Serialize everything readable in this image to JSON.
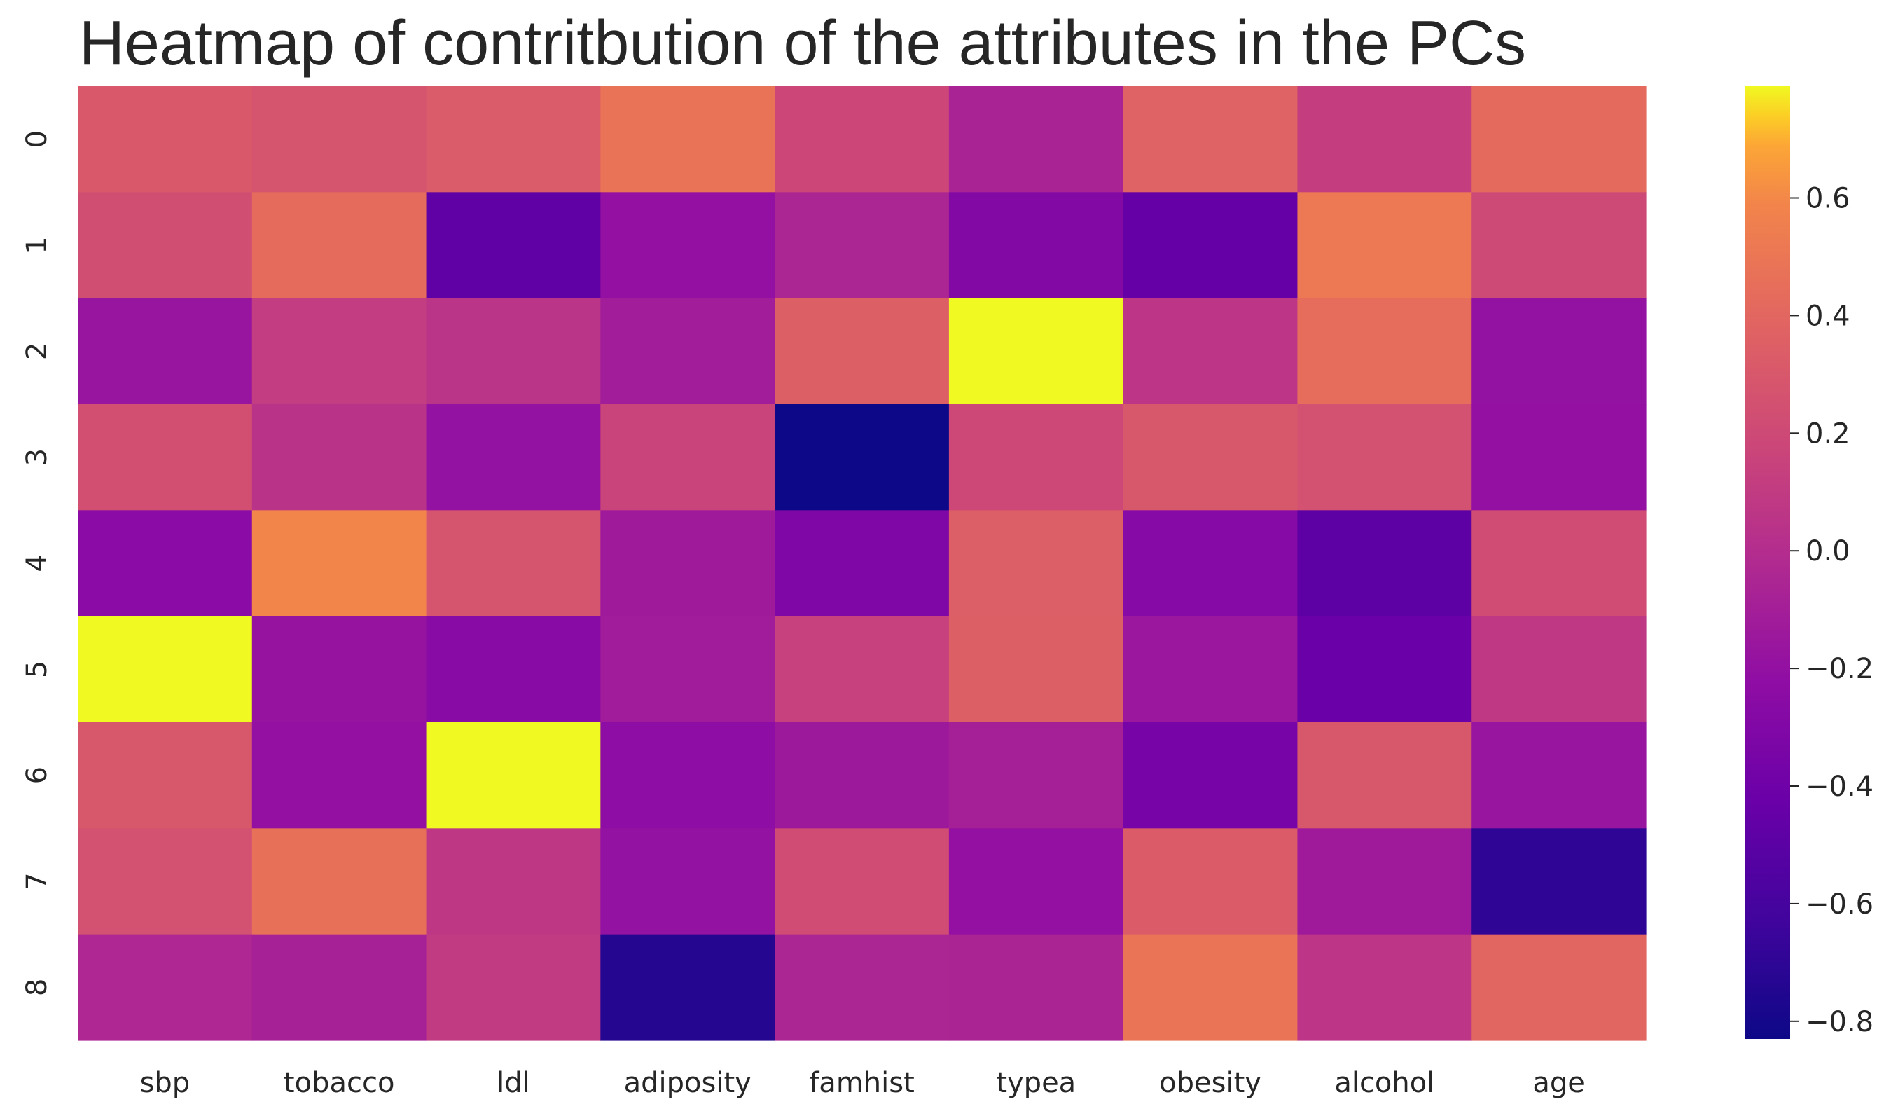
{
  "chart_data": {
    "type": "heatmap",
    "title": "Heatmap of contritbution of the attributes in the PCs",
    "x_categories": [
      "sbp",
      "tobacco",
      "ldl",
      "adiposity",
      "famhist",
      "typea",
      "obesity",
      "alcohol",
      "age"
    ],
    "y_categories": [
      "0",
      "1",
      "2",
      "3",
      "4",
      "5",
      "6",
      "7",
      "8"
    ],
    "values": [
      [
        0.31,
        0.27,
        0.32,
        0.48,
        0.18,
        -0.07,
        0.37,
        0.12,
        0.42
      ],
      [
        0.23,
        0.43,
        -0.48,
        -0.2,
        -0.05,
        -0.29,
        -0.45,
        0.52,
        0.2
      ],
      [
        -0.17,
        0.11,
        0.05,
        -0.11,
        0.35,
        0.79,
        0.06,
        0.44,
        -0.19
      ],
      [
        0.24,
        0.04,
        -0.19,
        0.16,
        -0.83,
        0.19,
        0.3,
        0.25,
        -0.2
      ],
      [
        -0.25,
        0.59,
        0.27,
        -0.13,
        -0.31,
        0.34,
        -0.27,
        -0.49,
        0.22
      ],
      [
        0.79,
        -0.18,
        -0.26,
        -0.12,
        0.14,
        0.35,
        -0.15,
        -0.43,
        0.08
      ],
      [
        0.3,
        -0.2,
        0.79,
        -0.23,
        -0.14,
        -0.09,
        -0.36,
        0.3,
        -0.17
      ],
      [
        0.25,
        0.46,
        0.07,
        -0.19,
        0.22,
        -0.2,
        0.33,
        -0.13,
        -0.7
      ],
      [
        -0.04,
        -0.08,
        0.1,
        -0.74,
        -0.05,
        -0.06,
        0.49,
        0.06,
        0.39
      ]
    ],
    "colorbar": {
      "colormap": "plasma",
      "range": [
        -0.83,
        0.79
      ],
      "ticks": [
        -0.8,
        -0.6,
        -0.4,
        -0.2,
        0.0,
        0.2,
        0.4,
        0.6
      ],
      "tick_labels": [
        "−0.8",
        "−0.6",
        "−0.4",
        "−0.2",
        "0.0",
        "0.2",
        "0.4",
        "0.6"
      ]
    }
  }
}
